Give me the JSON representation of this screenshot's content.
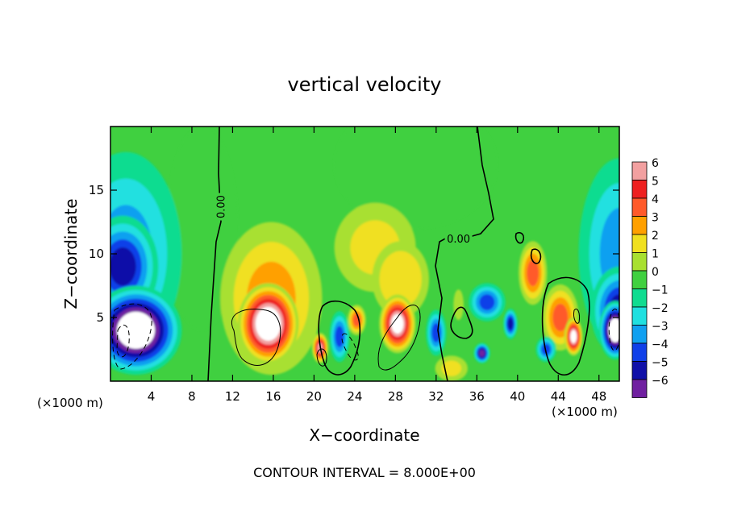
{
  "chart_data": {
    "type": "heatmap",
    "title": "vertical velocity",
    "xlabel": "X−coordinate",
    "ylabel": "Z−coordinate",
    "x_unit_left": "(×1000 m)",
    "x_unit_right": "(×1000 m)",
    "footer": "CONTOUR INTERVAL = 8.000E+00",
    "xlim": [
      0,
      50
    ],
    "ylim": [
      0,
      20
    ],
    "x_ticks": [
      4,
      8,
      12,
      16,
      20,
      24,
      28,
      32,
      36,
      40,
      44,
      48
    ],
    "x_tick_labels": [
      "4",
      "8",
      "12",
      "16",
      "20",
      "24",
      "28",
      "32",
      "36",
      "40",
      "44",
      "48"
    ],
    "y_ticks": [
      5,
      10,
      15
    ],
    "y_tick_labels": [
      "5",
      "10",
      "15"
    ],
    "colorbar": {
      "levels": [
        6,
        5,
        4,
        3,
        2,
        1,
        0,
        -1,
        -2,
        -3,
        -4,
        -5,
        -6
      ],
      "labels": [
        "6",
        "5",
        "4",
        "3",
        "2",
        "1",
        "0",
        "−1",
        "−2",
        "−3",
        "−4",
        "−5",
        "−6"
      ],
      "colors": [
        "#f2a0a0",
        "#ee2020",
        "#ff5a2a",
        "#ffa000",
        "#f0e020",
        "#a8e030",
        "#40d040",
        "#10dc90",
        "#20e0e0",
        "#10a0f0",
        "#1040e8",
        "#1010a8",
        "#7020a0"
      ]
    },
    "contour_labels": [
      {
        "text": "0.00",
        "x": 10.8,
        "y": 13.7,
        "rotate": -90
      },
      {
        "text": "0.00",
        "x": 34.2,
        "y": 11.2,
        "rotate": 0
      }
    ],
    "blobs": [
      {
        "x": 1.5,
        "y": 10,
        "rx": 5.5,
        "ry": 8,
        "v": -3
      },
      {
        "x": 1.2,
        "y": 9,
        "rx": 3.5,
        "ry": 4,
        "v": -5
      },
      {
        "x": 2.5,
        "y": 4,
        "rx": 4.5,
        "ry": 3.5,
        "v": -8
      },
      {
        "x": 50,
        "y": 10,
        "rx": 4,
        "ry": 7.5,
        "v": -3
      },
      {
        "x": 50,
        "y": 5.5,
        "rx": 2.8,
        "ry": 3.5,
        "v": -5
      },
      {
        "x": 49.6,
        "y": 4,
        "rx": 1.6,
        "ry": 2.3,
        "v": -8
      },
      {
        "x": 15.8,
        "y": 6.5,
        "rx": 5,
        "ry": 6,
        "v": 3
      },
      {
        "x": 15.5,
        "y": 4.5,
        "rx": 3,
        "ry": 3.2,
        "v": 8
      },
      {
        "x": 28.5,
        "y": 8,
        "rx": 2.8,
        "ry": 3,
        "v": 2.5
      },
      {
        "x": 28.2,
        "y": 4.5,
        "rx": 1.8,
        "ry": 2.3,
        "v": 7
      },
      {
        "x": 26,
        "y": 10.5,
        "rx": 4,
        "ry": 3.5,
        "v": 1.8
      },
      {
        "x": 20.6,
        "y": 2.6,
        "rx": 0.8,
        "ry": 1.2,
        "v": 6
      },
      {
        "x": 22.5,
        "y": 3.5,
        "rx": 1.0,
        "ry": 2,
        "v": -4
      },
      {
        "x": 24.2,
        "y": 4.8,
        "rx": 0.9,
        "ry": 1.2,
        "v": 4
      },
      {
        "x": 32.0,
        "y": 3.8,
        "rx": 1.0,
        "ry": 1.8,
        "v": -4
      },
      {
        "x": 37,
        "y": 6.2,
        "rx": 1.8,
        "ry": 1.5,
        "v": -3.5
      },
      {
        "x": 36.5,
        "y": 2.2,
        "rx": 0.8,
        "ry": 0.8,
        "v": -6
      },
      {
        "x": 39.3,
        "y": 4.5,
        "rx": 0.7,
        "ry": 1.2,
        "v": -5
      },
      {
        "x": 41.5,
        "y": 8.5,
        "rx": 1.4,
        "ry": 2.5,
        "v": 4
      },
      {
        "x": 44.2,
        "y": 5,
        "rx": 1.8,
        "ry": 2.6,
        "v": 4
      },
      {
        "x": 45.5,
        "y": 3.5,
        "rx": 0.9,
        "ry": 1.5,
        "v": 7
      },
      {
        "x": 42.8,
        "y": 2.5,
        "rx": 1.0,
        "ry": 1.0,
        "v": -4
      },
      {
        "x": 33.5,
        "y": 1.0,
        "rx": 1.6,
        "ry": 1.0,
        "v": 2
      },
      {
        "x": 34.2,
        "y": 6.0,
        "rx": 0.5,
        "ry": 1.2,
        "v": 1
      },
      {
        "x": 9,
        "y": 12,
        "rx": 3.5,
        "ry": 8,
        "v": 0.3
      },
      {
        "x": 30,
        "y": 17,
        "rx": 8,
        "ry": 5,
        "v": 0.4
      }
    ]
  }
}
